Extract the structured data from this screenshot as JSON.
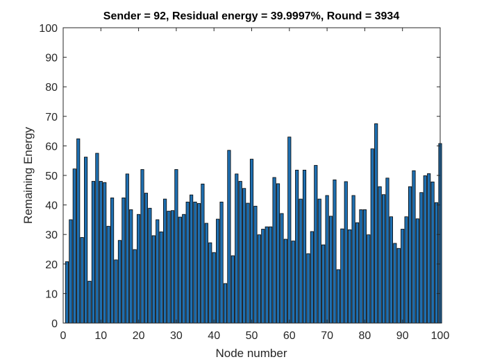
{
  "chart_data": {
    "type": "bar",
    "title": "Sender = 92, Residual energy = 39.9997%, Round = 3934",
    "xlabel": "Node number",
    "ylabel": "Remaining Energy",
    "xlim": [
      0,
      100
    ],
    "ylim": [
      0,
      100
    ],
    "xticks": [
      "0",
      "10",
      "20",
      "30",
      "40",
      "50",
      "60",
      "70",
      "80",
      "90",
      "100"
    ],
    "yticks": [
      "0",
      "10",
      "20",
      "30",
      "40",
      "50",
      "60",
      "70",
      "80",
      "90",
      "100"
    ],
    "grid": false,
    "bar_color": "#1f6fb0",
    "bar_edge_color": "#000000",
    "x": [
      1,
      2,
      3,
      4,
      5,
      6,
      7,
      8,
      9,
      10,
      11,
      12,
      13,
      14,
      15,
      16,
      17,
      18,
      19,
      20,
      21,
      22,
      23,
      24,
      25,
      26,
      27,
      28,
      29,
      30,
      31,
      32,
      33,
      34,
      35,
      36,
      37,
      38,
      39,
      40,
      41,
      42,
      43,
      44,
      45,
      46,
      47,
      48,
      49,
      50,
      51,
      52,
      53,
      54,
      55,
      56,
      57,
      58,
      59,
      60,
      61,
      62,
      63,
      64,
      65,
      66,
      67,
      68,
      69,
      70,
      71,
      72,
      73,
      74,
      75,
      76,
      77,
      78,
      79,
      80,
      81,
      82,
      83,
      84,
      85,
      86,
      87,
      88,
      89,
      90,
      91,
      92,
      93,
      94,
      95,
      96,
      97,
      98,
      99,
      100
    ],
    "values": [
      20.8,
      35,
      52.2,
      62.4,
      29,
      56.2,
      14.2,
      48,
      57.5,
      48,
      47.6,
      32.8,
      42.4,
      21.4,
      28,
      42.4,
      50.5,
      38.4,
      24.9,
      36.8,
      52,
      44,
      38.9,
      29.6,
      35,
      30.9,
      42,
      37.9,
      38.1,
      52,
      35.9,
      36.8,
      41,
      43.4,
      41,
      40.5,
      47.1,
      33.8,
      27.2,
      23.9,
      35.2,
      41,
      13.4,
      58.5,
      22.8,
      50.5,
      48,
      45.6,
      40.6,
      55.5,
      39.6,
      29.9,
      31.8,
      32.6,
      32.6,
      49.3,
      47.2,
      37.1,
      28.4,
      63,
      27.8,
      51.8,
      42,
      51.8,
      23.5,
      31,
      53.4,
      42,
      26.5,
      43.2,
      36.2,
      48.5,
      18.1,
      31.9,
      47.9,
      31.6,
      43.2,
      34,
      38.4,
      38.4,
      29.9,
      59,
      67.5,
      46.2,
      43.5,
      49.1,
      36,
      27,
      25.3,
      31.8,
      36,
      46.2,
      51.6,
      35.3,
      44.2,
      49.9,
      50.6,
      47.8,
      40.8,
      60.8
    ]
  }
}
